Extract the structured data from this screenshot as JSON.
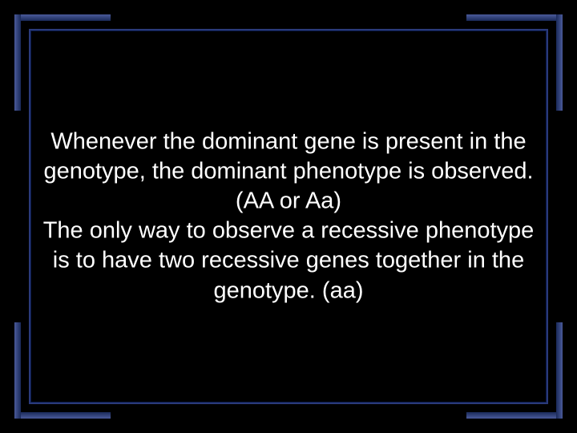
{
  "slide": {
    "background_color": "#000000",
    "text_color": "#ffffff",
    "frame_color_light": "#4a5a9a",
    "frame_color_dark": "#1a2a5a",
    "inner_border_color": "#2a3a7a",
    "font_family": "Verdana",
    "font_size_pt": 22,
    "text": "Whenever the dominant gene is present in the genotype, the dominant phenotype is observed. (AA or Aa)\nThe only way to observe a recessive phenotype is to have two recessive genes together in the genotype. (aa)",
    "paragraph1": "Whenever the dominant gene is present in the genotype, the dominant phenotype is observed. (AA or Aa)",
    "paragraph2": "The only way to observe a recessive phenotype is to have two recessive genes together in the genotype. (aa)"
  }
}
